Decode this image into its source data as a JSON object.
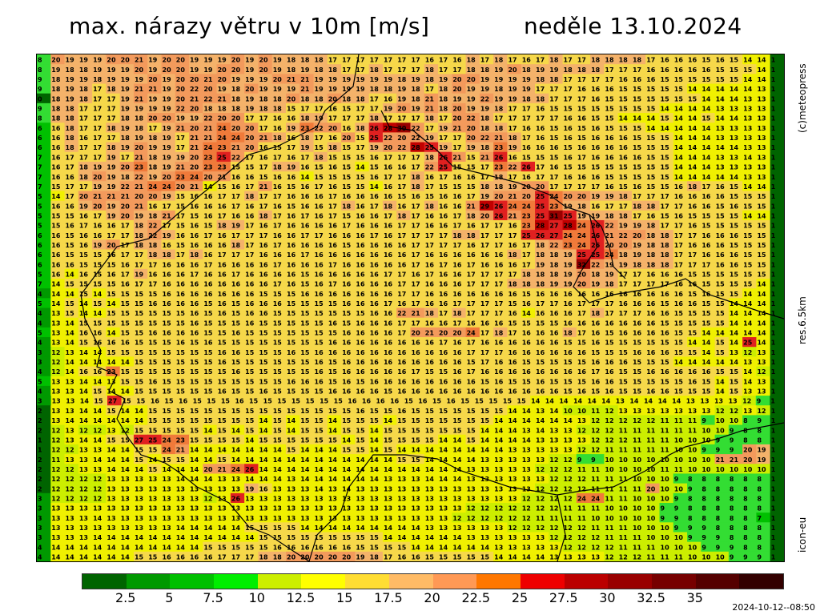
{
  "header": {
    "title_left": "max. nárazy větru v 10m [m/s]",
    "title_right": "neděle 13.10.2024"
  },
  "side_labels": {
    "credit": "(c)meteopress",
    "resolution": "res.6.5km",
    "model": "icon-eu"
  },
  "legend": {
    "colors": [
      "#006400",
      "#009900",
      "#00c000",
      "#00ee00",
      "#ccee00",
      "#ffff00",
      "#ffdd33",
      "#ffbb66",
      "#ff9955",
      "#ff7700",
      "#ee0000",
      "#bb0000",
      "#990000",
      "#770000",
      "#550000",
      "#330000"
    ],
    "ticks": [
      "2.5",
      "5",
      "7.5",
      "10",
      "12.5",
      "15",
      "17.5",
      "20",
      "22.5",
      "25",
      "27.5",
      "30",
      "32.5",
      "35"
    ]
  },
  "timestamp": "2024-10-12--08:50",
  "map": {
    "rows": [
      "8 20 19 19 19 20 20 21 19 20 20 19 19 19 20 19 20 19 18 18 18 17 17 17 17 17 17 17 16 17 16 18 17 18 17 16 17 18 17 17 18 18 18 18 17 16 16 16 15 16 15 14 14 1",
      "8 19 18 18 19 19 19 20 19 20 20 19 19 20 20 19 20 19 18 19 18 18 17 17 18 17 17 17 18 17 17 18 18 19 20 18 19 19 18 18 18 17 17 17 16 16 16 16 16 15 15 15 14 1",
      "9 18 19 19 18 19 19 19 20 19 20 20 21 20 19 19 19 20 21 21 19 19 19 19 19 19 18 19 18 19 20 20 19 19 19 19 18 18 17 17 17 17 16 16 16 15 15 15 15 15 15 14 14 1",
      "9 18 19 18 17 18 19 21 21 19 20 22 20 19 18 20 19 19 19 21 19 19 19 19 18 18 19 18 17 18 20 19 19 18 19 19 17 17 17 16 16 16 15 15 15 15 15 14 14 14 14 14 13 1",
      "0 18 19 18 17 17 19 21 19 19 20 21 22 21 18 19 18 18 20 18 18 20 18 18 17 16 19 18 21 18 19 19 22 19 19 18 18 17 17 17 16 15 15 15 15 15 15 15 14 14 14 13 13 1",
      "9 18 18 17 17 17 19 19 19 19 22 20 18 18 18 19 18 18 15 17 17 16 15 17 17 19 20 19 21 18 20 19 19 18 17 17 16 15 15 15 15 15 15 15 15 14 14 14 14 13 13 13 13 1",
      "8 18 18 17 17 17 18 18 20 20 19 19 22 20 20 17 17 16 16 18 19 17 17 17 18 17 17 17 18 17 20 22 18 17 17 17 17 17 16 16 15 15 14 14 14 15 14 14 15 14 14 13 13 1",
      "6 16 18 17 17 18 19 18 17 19 21 20 21 24 20 20 17 16 19 23 22 20 16 18 26 28 30 22 17 19 21 20 18 18 17 16 16 15 16 15 16 15 15 15 14 14 14 14 14 13 13 13 13 1",
      "6 16 18 16 17 17 18 19 18 19 17 21 21 24 24 20 21 18 16 18 17 16 20 15 25 22 20 22 19 17 17 20 22 21 18 17 16 15 16 15 16 16 16 15 15 15 14 14 14 13 13 13 13 1",
      "6 16 18 17 17 18 19 20 19 19 17 21 24 23 21 20 16 15 17 19 15 18 15 17 19 20 22 28 25 19 17 19 18 23 19 16 16 16 15 16 16 16 16 15 15 15 14 14 14 14 14 13 13 1",
      "7 16 17 17 17 19 17 21 18 19 19 20 23 25 22 17 16 17 16 17 18 15 15 15 16 17 17 17 18 26 21 15 21 26 16 15 15 15 16 17 16 16 16 16 15 15 14 14 14 13 13 14 13 1",
      "7 16 17 18 19 19 20 23 18 19 21 20 23 23 15 15 17 18 19 16 15 16 15 14 15 16 16 17 22 25 15 15 17 23 22 26 17 16 15 15 15 15 15 15 15 15 14 14 14 13 13 13 13 1",
      "7 16 16 18 20 19 18 22 19 20 23 24 20 21 16 16 15 16 16 14 15 15 15 15 16 17 17 18 16 17 16 16 17 18 17 16 17 17 16 16 16 15 15 15 15 15 14 14 14 14 14 13 13 1",
      "7 15 17 17 19 19 22 21 24 24 20 21 14 15 16 17 21 16 15 16 17 16 15 15 14 16 17 18 17 15 15 15 18 18 19 20 20 17 17 17 17 16 15 16 15 15 16 18 17 16 15 14 14 1",
      "5 14 17 20 21 21 21 20 20 19 15 16 16 17 17 18 17 17 16 16 16 17 16 16 16 16 15 16 15 16 16 17 19 20 21 20 25 24 20 20 19 19 18 17 17 17 16 16 16 16 15 15 15 1",
      "5 16 16 19 20 19 20 21 16 17 15 16 16 16 17 16 17 16 15 16 16 17 18 16 17 18 16 17 18 16 16 21 29 26 24 24 25 23 19 18 16 17 17 18 18 17 17 16 16 15 16 15 15 1",
      "5 15 15 16 17 19 20 19 18 21 17 15 16 17 16 16 18 17 16 17 16 17 15 16 16 17 18 17 16 16 17 18 20 26 21 23 25 31 25 19 19 18 18 17 16 15 16 15 15 15 15 14 14 1",
      "5 15 16 17 16 16 17 18 22 17 15 16 15 18 19 17 16 17 16 16 16 16 17 16 16 16 17 17 16 16 17 16 17 17 16 23 28 27 28 24 26 22 19 19 18 17 17 16 15 15 15 15 15 1",
      "6 16 15 16 16 17 17 18 22 19 16 16 17 16 17 17 17 16 16 17 17 16 16 16 17 16 17 17 17 17 18 18 17 17 17 25 26 27 24 24 26 21 22 20 18 18 17 17 16 16 16 15 15 1",
      "6 16 15 16 19 20 17 18 18 16 15 16 16 16 18 17 16 17 16 16 16 16 15 16 16 16 16 17 17 17 17 16 17 17 16 17 18 22 23 24 26 20 20 19 18 18 17 16 16 16 15 15 15 1",
      "6 16 15 15 15 16 17 17 18 18 17 18 16 17 17 17 16 16 16 17 16 16 16 16 16 16 16 17 16 16 16 16 16 16 18 17 18 18 19 25 25 24 18 19 18 18 17 17 16 16 16 15 15 1",
      "6 16 16 15 15 15 16 17 17 16 16 16 17 16 16 16 16 17 16 16 16 17 16 16 16 16 16 17 16 17 16 17 16 16 16 17 19 18 19 32 22 19 19 18 18 18 17 17 17 16 16 15 15 1",
      "5 16 14 16 15 16 17 19 16 16 16 17 16 16 17 16 16 16 16 15 16 16 16 16 16 17 17 16 17 16 16 17 17 17 17 18 18 18 19 20 18 19 17 17 16 16 16 15 15 15 15 15 15 1",
      "7 14 15 15 15 15 16 17 17 16 16 16 16 16 16 16 16 17 16 15 16 17 16 16 16 16 17 17 16 16 16 17 17 17 18 18 18 19 19 20 19 18 17 17 17 17 16 16 15 15 15 15 14 1",
      "4 14 14 15 14 15 15 15 15 16 16 16 16 16 16 16 15 15 15 16 16 16 16 16 16 16 17 17 16 16 16 16 16 16 16 15 16 16 16 16 16 16 16 16 16 16 16 15 16 15 15 14 14 1",
      "5 14 15 14 15 14 15 15 16 16 16 16 15 16 15 16 16 16 15 15 15 15 16 16 16 17 16 17 16 16 17 17 17 17 15 16 17 17 16 17 17 17 16 16 16 15 16 16 15 15 14 14 14 1",
      "4 13 15 14 14 15 15 15 15 15 15 16 15 16 15 16 16 15 15 15 15 15 15 15 16 16 22 21 18 17 18 17 17 17 16 14 16 16 16 17 18 17 17 17 16 16 15 15 15 15 14 14 14 1",
      "4 13 14 15 15 15 15 15 15 15 15 16 15 15 15 16 15 15 15 15 15 16 15 16 16 16 17 17 16 16 17 16 16 16 15 15 15 15 16 16 16 16 16 16 16 15 15 15 15 15 14 14 14 1",
      "5 13 14 16 16 14 15 15 16 16 16 16 15 15 16 15 15 15 15 15 15 15 16 16 16 16 17 20 21 20 20 24 17 18 17 16 16 16 18 17 16 15 16 16 16 16 15 15 14 14 14 14 14 1",
      "4 13 14 15 16 16 16 15 15 15 16 15 16 15 15 15 15 15 15 15 15 16 16 16 16 16 16 16 16 17 16 17 16 16 16 16 16 16 15 15 16 15 15 15 15 15 15 14 14 15 14 25 14 1",
      "3 12 13 14 14 15 15 15 15 15 15 15 15 16 16 15 15 15 16 15 16 16 16 16 16 16 16 16 16 16 16 17 17 17 16 16 16 16 16 16 15 15 15 16 16 16 15 15 14 15 13 12 13 1",
      "3 12 14 14 14 14 14 15 15 15 15 15 15 16 15 15 15 15 15 15 16 15 16 16 16 16 16 16 16 16 16 15 17 16 16 15 15 15 15 15 16 16 16 15 15 15 14 14 14 14 14 13 13 1",
      "4 12 14 16 16 23 15 15 15 15 15 15 15 15 16 15 15 15 15 15 16 15 16 16 16 16 16 17 15 15 16 17 16 16 16 16 16 16 16 16 17 16 15 15 16 16 16 16 16 15 15 14 12 1",
      "5 13 13 14 14 13 15 15 16 15 15 15 15 15 15 15 15 15 16 16 16 15 16 15 16 16 16 16 16 16 16 16 15 16 15 15 16 15 15 15 16 16 15 15 15 15 15 16 15 14 15 14 13 1",
      "4 13 13 14 15 14 14 15 15 15 15 15 15 16 15 15 16 15 15 15 15 16 16 16 16 15 16 16 16 16 16 16 16 16 16 16 16 16 15 16 15 16 15 15 16 16 15 15 15 14 15 13 13 1",
      "3 13 13 14 15 27 15 15 16 15 16 15 15 15 16 15 15 15 15 15 15 15 16 16 16 16 15 16 15 16 15 15 15 15 15 14 14 14 14 14 14 13 14 14 14 14 13 13 13 13 12 9 1",
      "2 13 13 14 14 15 14 14 15 15 15 15 15 15 15 15 15 15 15 15 15 15 15 16 15 15 16 15 15 15 15 15 15 15 14 14 13 14 10 10 11 12 13 13 13 13 13 13 13 12 12 13 12 1",
      "2 13 14 14 14 14 14 14 15 15 15 15 15 15 15 15 14 15 14 15 15 14 15 15 15 14 15 15 15 15 15 15 15 14 14 14 14 14 14 13 12 12 12 12 12 11 11 11 9 10 10 8 9 1",
      "2 12 13 12 12 13 12 15 15 15 15 15 14 15 14 15 14 15 14 15 15 14 15 15 14 15 15 15 15 15 15 15 14 14 14 13 14 13 13 12 12 12 11 11 11 11 11 11 10 10 9 8 8 1",
      "1 12 13 14 14 15 15 27 25 24 23 15 15 15 15 14 15 15 15 15 15 15 14 15 14 15 15 15 15 14 14 15 14 14 14 14 13 13 13 13 12 12 12 11 11 11 10 10 10 9 9 8 8 1",
      "1 12 12 13 13 14 14 15 15 24 21 14 14 14 14 14 14 14 15 14 14 14 15 15 14 15 14 14 14 14 14 14 14 14 13 13 13 13 13 12 12 11 11 11 11 11 10 10 9 9 9 20 19 1",
      "2 11 13 13 14 14 14 15 14 15 15 14 14 15 14 14 14 14 14 14 14 14 14 14 14 14 15 15 14 14 14 14 13 13 13 13 13 12 12 9 9 10 10 10 10 10 10 10 10 21 21 20 19 1",
      "2 12 12 13 13 14 14 14 15 14 14 14 20 21 24 26 14 14 14 14 14 14 14 14 14 14 14 14 14 14 14 13 13 13 13 13 12 12 12 11 11 10 10 10 10 11 11 10 10 10 10 10 10 1",
      "2 12 12 12 12 13 13 13 13 13 14 14 14 13 13 14 14 14 13 14 14 14 14 14 14 13 13 13 14 14 14 13 13 13 13 13 13 12 12 12 11 11 11 10 10 10 9 8 8 8 8 8 8 1",
      "2 12 12 12 12 13 13 13 13 13 13 13 13 13 13 19 16 13 13 13 14 13 14 13 13 13 13 13 13 13 13 13 13 13 13 13 12 12 12 12 11 11 11 11 20 10 10 9 8 8 8 8 8 1",
      "3 12 12 12 12 13 13 13 13 13 13 13 12 13 26 13 13 13 13 13 13 13 13 13 13 13 13 13 13 13 13 13 13 13 13 12 12 12 12 24 24 11 11 10 10 10 9 8 8 8 8 8 8 1",
      "3 13 13 13 13 13 13 13 13 13 13 13 13 13 13 13 13 13 13 13 13 13 13 13 13 13 13 13 13 13 13 12 12 12 12 12 12 12 11 11 11 10 10 10 10 9 9 8 8 8 8 8 8 1",
      "3 13 13 13 14 13 13 13 13 13 13 13 13 13 13 13 13 13 13 13 13 13 13 13 13 13 13 13 13 13 12 12 12 12 12 12 11 11 11 11 10 10 10 10 10 9 9 8 8 8 8 8 7 1",
      "3 13 13 13 13 13 13 13 13 13 14 14 14 14 14 15 15 15 15 14 14 14 14 14 14 14 14 14 13 13 13 13 13 13 12 12 12 12 12 12 11 11 11 10 10 10 9 9 9 8 8 8 8 1",
      "3 13 13 13 14 14 14 14 14 14 14 14 14 14 14 14 15 15 15 15 15 15 15 15 15 14 14 14 14 14 14 13 13 13 13 13 13 12 12 12 12 11 11 11 10 10 10 9 9 9 8 8 8 1",
      "4 14 14 14 14 14 14 14 14 14 14 14 15 15 15 15 15 16 16 16 16 16 16 15 15 15 15 14 14 14 14 14 14 13 13 13 13 13 12 12 12 12 11 11 11 10 10 10 9 9 9 8 8 1",
      "4 14 14 14 14 14 14 15 15 16 16 16 16 17 17 17 18 18 20 20 20 20 20 19 18 17 16 16 15 15 15 15 15 14 14 14 14 13 13 13 13 12 12 12 11 11 11 10 10 10 9 9 9 1"
    ]
  }
}
